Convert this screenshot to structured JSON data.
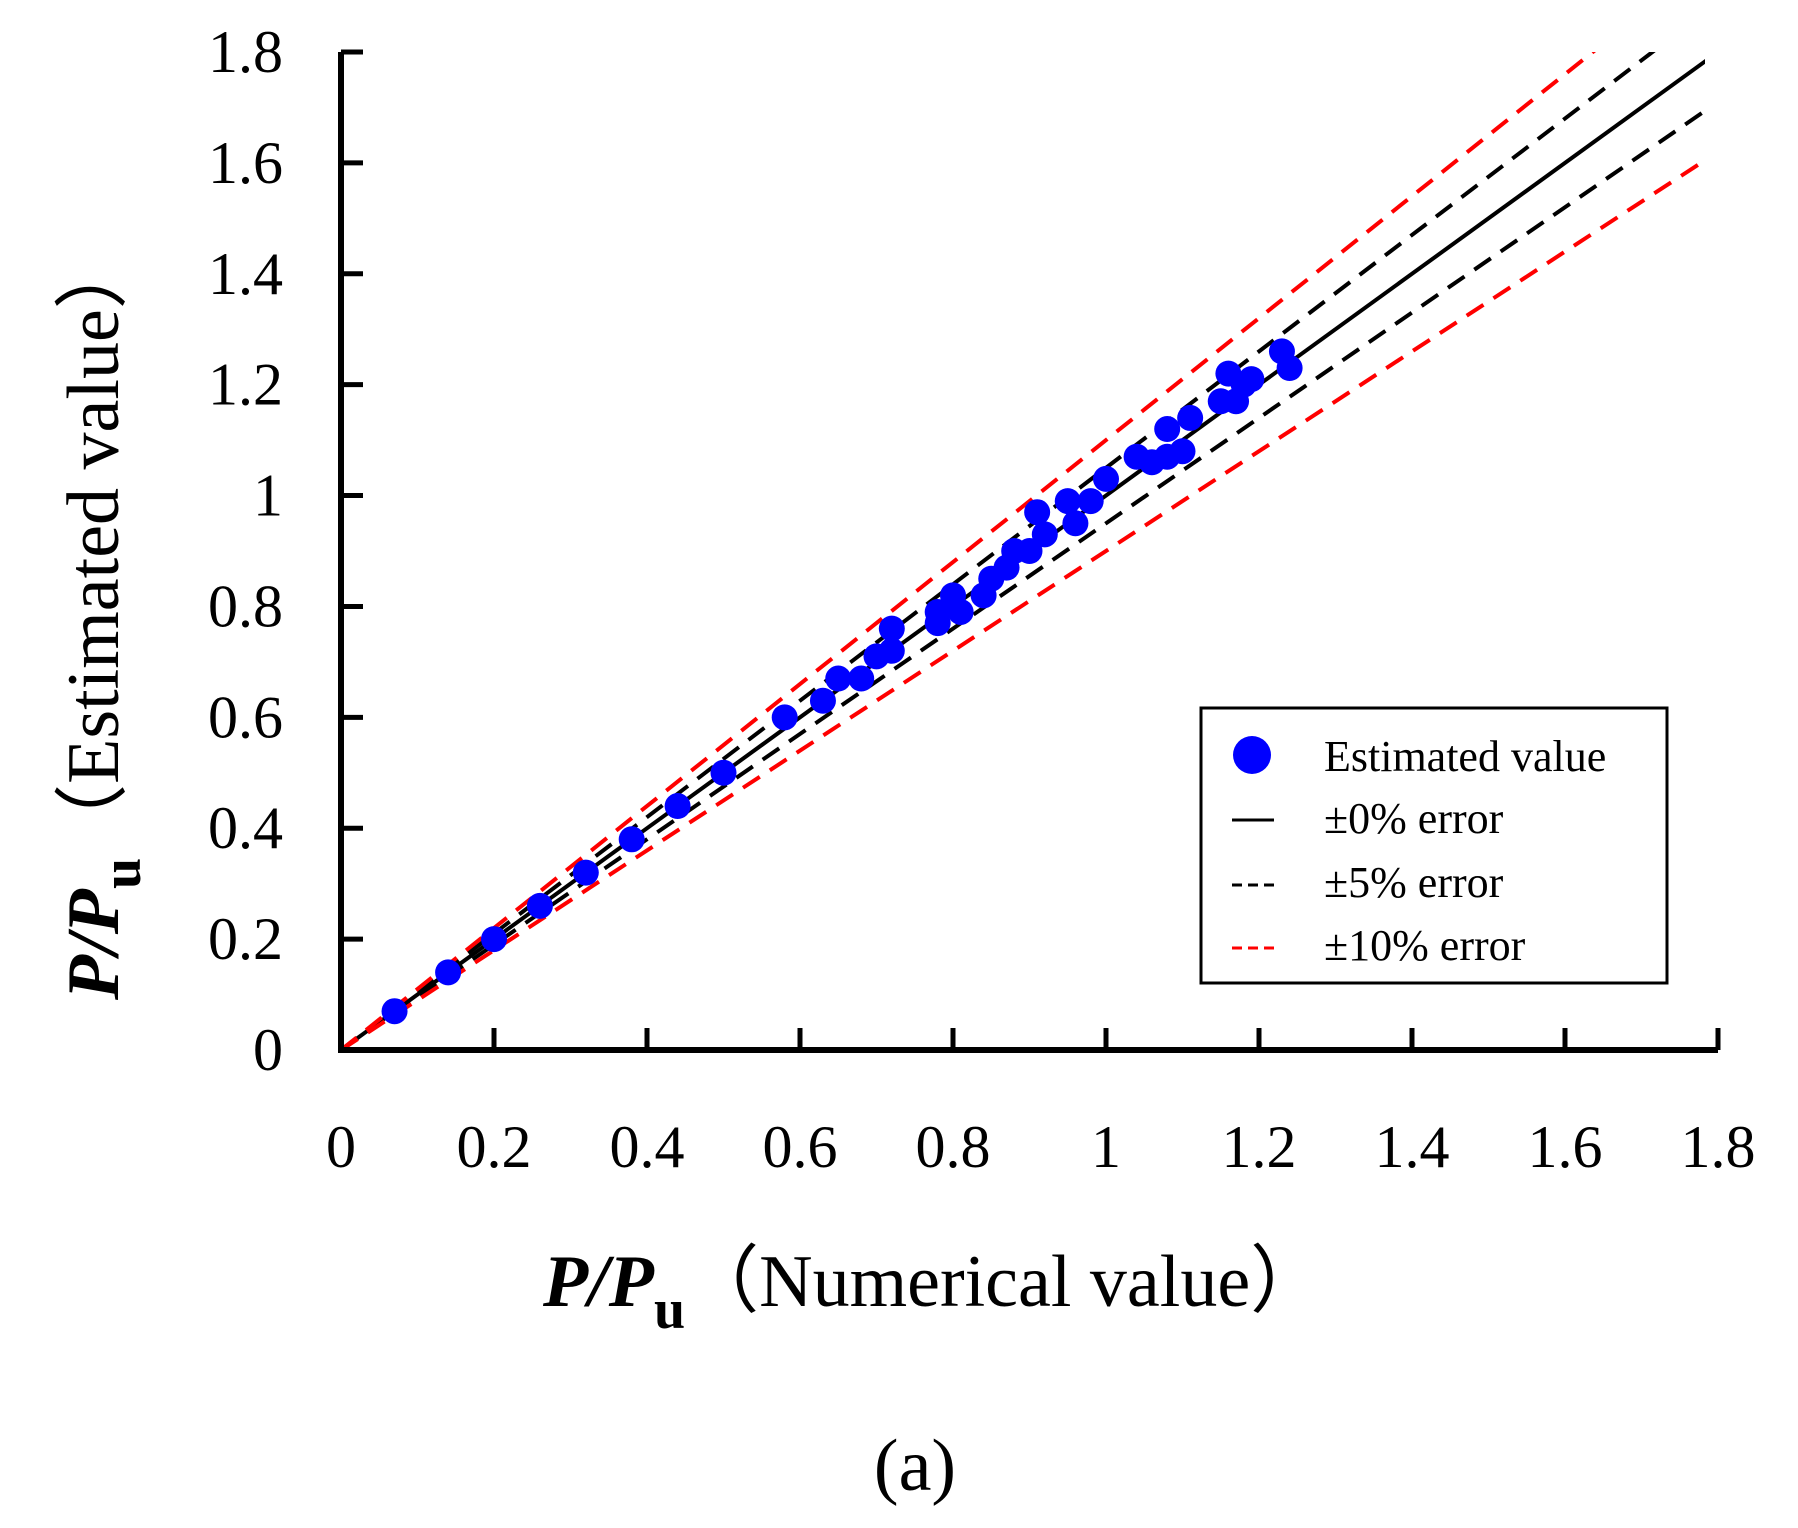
{
  "chart_data": {
    "type": "scatter",
    "xlabel": {
      "prefix_var": "P",
      "slash": "/",
      "var": "P",
      "subscript": "u",
      "text": "（Numerical value）"
    },
    "ylabel": {
      "prefix_var": "P",
      "slash": "/",
      "var": "P",
      "subscript": "u",
      "text": "（Estimated value）"
    },
    "xlim": [
      0,
      1.8
    ],
    "ylim": [
      0,
      1.8
    ],
    "x_ticks": [
      "0",
      "0.2",
      "0.4",
      "0.6",
      "0.8",
      "1",
      "1.2",
      "1.4",
      "1.6",
      "1.8"
    ],
    "y_ticks": [
      "0",
      "0.2",
      "0.4",
      "0.6",
      "0.8",
      "1",
      "1.2",
      "1.4",
      "1.6",
      "1.8"
    ],
    "grid": false,
    "legend_position": "bottom-right",
    "caption": "(a)",
    "series": [
      {
        "name": "Estimated value",
        "kind": "points",
        "color": "#0000ff",
        "points": [
          [
            0.07,
            0.07
          ],
          [
            0.14,
            0.14
          ],
          [
            0.2,
            0.2
          ],
          [
            0.26,
            0.26
          ],
          [
            0.32,
            0.32
          ],
          [
            0.38,
            0.38
          ],
          [
            0.44,
            0.44
          ],
          [
            0.5,
            0.5
          ],
          [
            0.58,
            0.6
          ],
          [
            0.63,
            0.63
          ],
          [
            0.65,
            0.67
          ],
          [
            0.68,
            0.67
          ],
          [
            0.7,
            0.71
          ],
          [
            0.72,
            0.72
          ],
          [
            0.72,
            0.76
          ],
          [
            0.78,
            0.77
          ],
          [
            0.78,
            0.79
          ],
          [
            0.8,
            0.82
          ],
          [
            0.81,
            0.79
          ],
          [
            0.84,
            0.82
          ],
          [
            0.85,
            0.85
          ],
          [
            0.87,
            0.87
          ],
          [
            0.88,
            0.9
          ],
          [
            0.9,
            0.9
          ],
          [
            0.91,
            0.97
          ],
          [
            0.92,
            0.93
          ],
          [
            0.95,
            0.99
          ],
          [
            0.96,
            0.95
          ],
          [
            0.98,
            0.99
          ],
          [
            1.0,
            1.03
          ],
          [
            1.04,
            1.07
          ],
          [
            1.06,
            1.06
          ],
          [
            1.08,
            1.12
          ],
          [
            1.08,
            1.07
          ],
          [
            1.1,
            1.08
          ],
          [
            1.11,
            1.14
          ],
          [
            1.15,
            1.17
          ],
          [
            1.16,
            1.22
          ],
          [
            1.17,
            1.17
          ],
          [
            1.18,
            1.2
          ],
          [
            1.19,
            1.21
          ],
          [
            1.23,
            1.26
          ],
          [
            1.24,
            1.23
          ]
        ]
      },
      {
        "name": "±0% error",
        "kind": "line",
        "slope": 1.0,
        "color": "#000000",
        "dash": false
      },
      {
        "name": "±5% error",
        "kind": "line",
        "slopes": [
          1.05,
          0.95
        ],
        "color": "#000000",
        "dash": true
      },
      {
        "name": "±10% error",
        "kind": "line",
        "slopes": [
          1.1,
          0.9
        ],
        "color": "#ff0000",
        "dash": true
      }
    ],
    "legend": [
      "Estimated value",
      "±0% error",
      "±5% error",
      "±10% error"
    ]
  }
}
